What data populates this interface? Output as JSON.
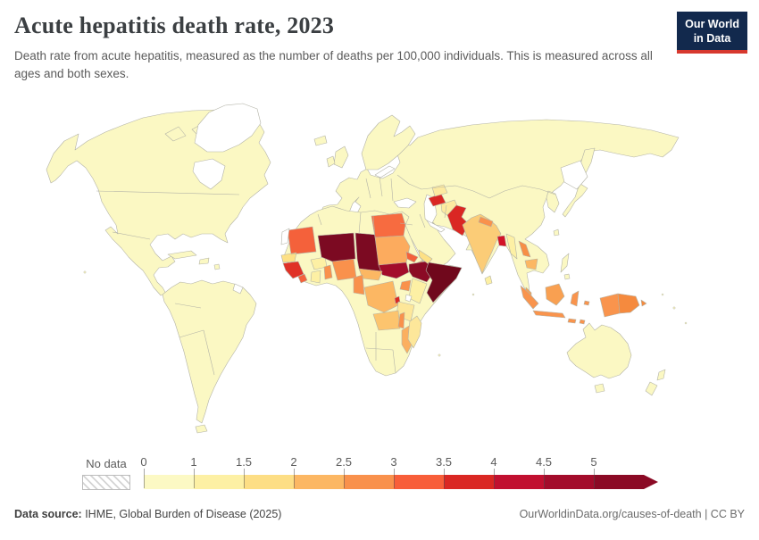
{
  "header": {
    "title": "Acute hepatitis death rate, 2023",
    "subtitle": "Death rate from acute hepatitis, measured as the number of deaths per 100,000 individuals. This is measured across all ages and both sexes."
  },
  "logo": {
    "line1": "Our World",
    "line2": "in Data",
    "bg_color": "#12294d",
    "accent_color": "#d7382e"
  },
  "legend": {
    "no_data_label": "No data",
    "bins": [
      {
        "label": "0",
        "color": "#fcf9c4"
      },
      {
        "label": "1",
        "color": "#fdf0a4"
      },
      {
        "label": "1.5",
        "color": "#fdde85"
      },
      {
        "label": "2",
        "color": "#fcb763"
      },
      {
        "label": "2.5",
        "color": "#f9914c"
      },
      {
        "label": "3",
        "color": "#f85e39"
      },
      {
        "label": "3.5",
        "color": "#da2723"
      },
      {
        "label": "4",
        "color": "#c11030"
      },
      {
        "label": "4.5",
        "color": "#a30c2b"
      },
      {
        "label": "5",
        "color": "#8b0a25"
      }
    ]
  },
  "footer": {
    "source_label": "Data source:",
    "source_text": " IHME, Global Burden of Disease (2025)",
    "right_text": "OurWorldinData.org/causes-of-death | CC BY"
  },
  "map": {
    "ocean": "#ffffff",
    "default_fill": "#fbf8c3",
    "no_data_fill": "#ffffff",
    "border_color": "#b3b3a7",
    "countries": {
      "mauritania": "#f4613b",
      "senegal": "#fde085",
      "guinea": "#e03127",
      "liberia": "#f4613b",
      "ghana": "#fdf0a4",
      "burkina_faso": "#fdf0a4",
      "benin_togo": "#f9914c",
      "nigeria": "#f9914c",
      "niger": "#7c0a22",
      "chad": "#7c0a22",
      "egypt": "#f76b40",
      "sudan": "#fcab5e",
      "south_sudan": "#a30c2b",
      "eritrea": "#f4613b",
      "djibouti": "#f9914c",
      "ethiopia": "#8b0a25",
      "somalia": "#70081c",
      "central_african_republic": "#fcb763",
      "cameroon": "#f9914c",
      "drc": "#fcb763",
      "uganda": "#f9914c",
      "kenya": "#fdf0a4",
      "rwanda_burundi": "#da2723",
      "tanzania": "#fde79a",
      "zambia": "#fcc46e",
      "malawi": "#f9914c",
      "mozambique": "#fbaf5f",
      "madagascar": "#fde79a",
      "yemen": "#fde085",
      "turkmenistan": "#da2723",
      "uzbekistan": "#fdeaa0",
      "afghanistan": "#fdeaa0",
      "pakistan": "#da2723",
      "india": "#fbcc77",
      "nepal": "#f9914c",
      "bangladesh": "#d31228",
      "myanmar": "#fdf0a4",
      "sri_lanka": "#fdf0a4",
      "laos": "#f78f46",
      "cambodia": "#fcb763",
      "malaysia": "#f9a051",
      "indonesia": "#f9944d",
      "papua_new_guinea": "#f58a3e"
    }
  },
  "chart_data": {
    "type": "heatmap",
    "subtype": "choropleth-world-map",
    "title": "Acute hepatitis death rate, 2023",
    "unit": "deaths per 100,000 individuals",
    "legend_bins": [
      "0-1",
      "1-1.5",
      "1.5-2",
      "2-2.5",
      "2.5-3",
      "3-3.5",
      "3.5-4",
      "4-4.5",
      "4.5-5",
      "5+"
    ],
    "bin_colors": [
      "#fcf9c4",
      "#fdf0a4",
      "#fdde85",
      "#fcb763",
      "#f9914c",
      "#f85e39",
      "#da2723",
      "#c11030",
      "#a30c2b",
      "#8b0a25"
    ],
    "no_data_regions": [
      "Greenland",
      "Western Sahara",
      "French Guiana"
    ],
    "estimated_values": {
      "Somalia": 5.9,
      "Niger": 5.6,
      "Chad": 5.4,
      "Ethiopia": 5.1,
      "South Sudan": 4.6,
      "Bangladesh": 4.3,
      "Pakistan": 3.8,
      "Turkmenistan": 3.7,
      "Guinea": 3.7,
      "Sierra Leone": 3.6,
      "Egypt": 3.2,
      "Eritrea": 3.2,
      "Mauritania": 3.1,
      "Liberia": 3.1,
      "Papua New Guinea": 2.9,
      "Nigeria": 2.7,
      "Laos": 2.7,
      "Cameroon": 2.6,
      "Malawi": 2.6,
      "Uganda": 2.6,
      "Nepal": 2.6,
      "Indonesia": 2.4,
      "Central African Republic": 2.3,
      "Sudan": 2.3,
      "Mozambique": 2.3,
      "Malaysia": 2.3,
      "DR Congo": 2.2,
      "Cambodia": 2.2,
      "Zambia": 2.1,
      "Senegal": 1.8,
      "Yemen": 1.9,
      "India": 1.7,
      "Tanzania": 1.7,
      "Madagascar": 1.6,
      "Afghanistan": 1.4,
      "Uzbekistan": 1.3,
      "Kenya": 1.2,
      "Ghana": 1.2,
      "Myanmar": 1.2,
      "most_other_countries": "< 1"
    }
  }
}
